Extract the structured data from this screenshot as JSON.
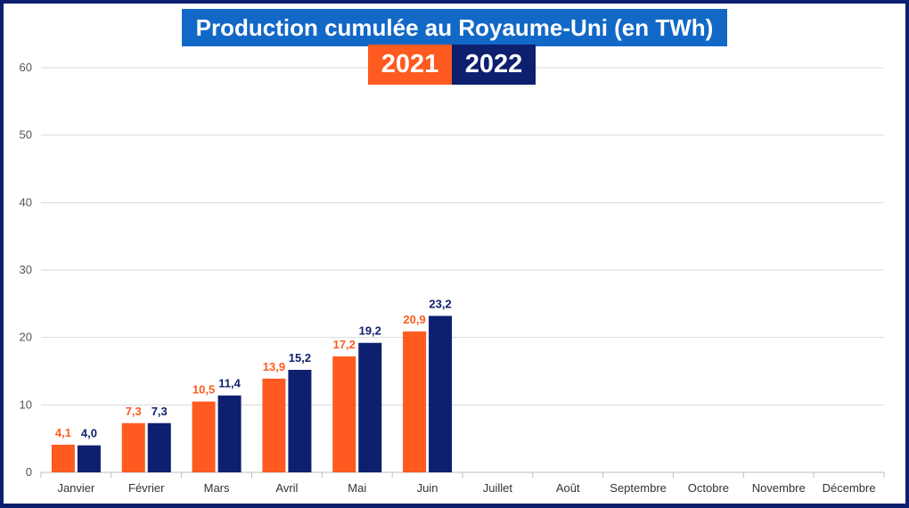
{
  "chart_data": {
    "type": "bar",
    "title": "Production cumulée au Royaume-Uni (en TWh)",
    "categories": [
      "Janvier",
      "Février",
      "Mars",
      "Avril",
      "Mai",
      "Juin",
      "Juillet",
      "Août",
      "Septembre",
      "Octobre",
      "Novembre",
      "Décembre"
    ],
    "series": [
      {
        "name": "2021",
        "color": "#ff5a1f",
        "values": [
          4.1,
          7.3,
          10.5,
          13.9,
          17.2,
          20.9,
          null,
          null,
          null,
          null,
          null,
          null
        ],
        "labels": [
          "4,1",
          "7,3",
          "10,5",
          "13,9",
          "17,2",
          "20,9"
        ]
      },
      {
        "name": "2022",
        "color": "#0d1f6e",
        "values": [
          4.0,
          7.3,
          11.4,
          15.2,
          19.2,
          23.2,
          null,
          null,
          null,
          null,
          null,
          null
        ],
        "labels": [
          "4,0",
          "7,3",
          "11,4",
          "15,2",
          "19,2",
          "23,2"
        ]
      }
    ],
    "yticks": [
      "0",
      "10",
      "20",
      "30",
      "40",
      "50",
      "60"
    ],
    "ylim": [
      0,
      60
    ],
    "grid": true,
    "legend_position": "top-center"
  },
  "colors": {
    "title_bg": "#1268c7",
    "frame": "#0b1f6e",
    "grid": "#d9d9d9"
  }
}
